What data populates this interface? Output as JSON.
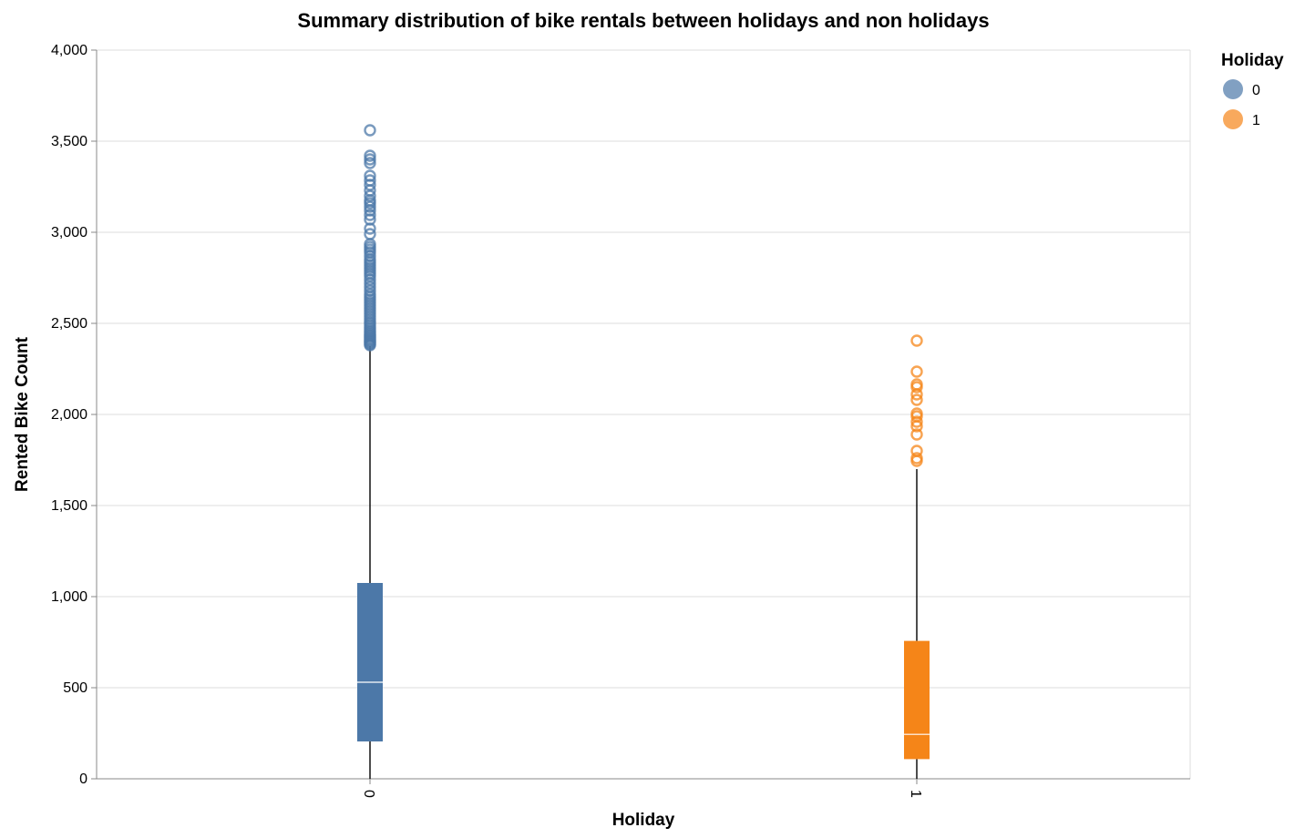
{
  "chart_data": {
    "type": "boxplot",
    "title": "Summary distribution of bike rentals between holidays and non holidays",
    "xlabel": "Holiday",
    "ylabel": "Rented Bike Count",
    "ylim": [
      0,
      4000
    ],
    "y_ticks": [
      0,
      500,
      1000,
      1500,
      2000,
      2500,
      3000,
      3500,
      4000
    ],
    "y_tick_labels": [
      "0",
      "500",
      "1,000",
      "1,500",
      "2,000",
      "2,500",
      "3,000",
      "3,500",
      "4,000"
    ],
    "categories": [
      "0",
      "1"
    ],
    "grid": true,
    "legend": {
      "title": "Holiday",
      "placement": "top-right",
      "entries": [
        {
          "label": "0",
          "color": "#4c78a8"
        },
        {
          "label": "1",
          "color": "#f58518"
        }
      ]
    },
    "boxes": [
      {
        "category": "0",
        "color": "#4c78a8",
        "min": 0,
        "q1": 205,
        "median": 530,
        "q3": 1075,
        "whisker_high": 2375,
        "outliers": [
          2380,
          2385,
          2392,
          2398,
          2405,
          2410,
          2418,
          2425,
          2432,
          2440,
          2450,
          2460,
          2472,
          2485,
          2498,
          2510,
          2525,
          2540,
          2555,
          2570,
          2585,
          2600,
          2615,
          2630,
          2645,
          2660,
          2680,
          2700,
          2720,
          2740,
          2760,
          2775,
          2790,
          2805,
          2820,
          2835,
          2850,
          2870,
          2890,
          2905,
          2920,
          2935,
          2990,
          3020,
          3070,
          3095,
          3120,
          3140,
          3160,
          3175,
          3200,
          3230,
          3260,
          3285,
          3310,
          3380,
          3400,
          3420,
          3560
        ]
      },
      {
        "category": "1",
        "color": "#f58518",
        "min": 0,
        "q1": 108,
        "median": 244,
        "q3": 757,
        "whisker_high": 1700,
        "outliers": [
          1745,
          1760,
          1800,
          1890,
          1935,
          1960,
          1990,
          2005,
          2080,
          2110,
          2150,
          2165,
          2235,
          2405
        ]
      }
    ]
  }
}
